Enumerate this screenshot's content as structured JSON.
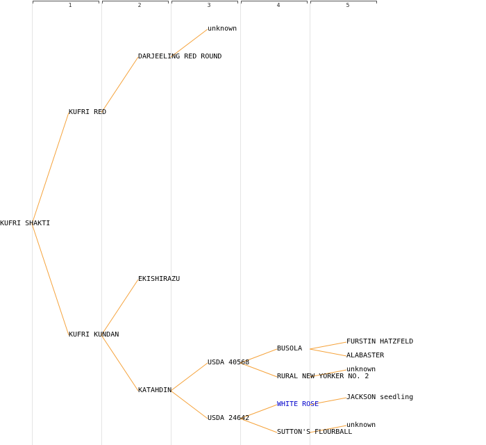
{
  "generations": [
    "1",
    "2",
    "3",
    "4",
    "5"
  ],
  "colors": {
    "connector": "#f5a23a",
    "link_node": "#0000cc",
    "text": "#000000"
  },
  "nodes": {
    "root": "KUFRI SHAKTI",
    "kufri_red": "KUFRI RED",
    "kufri_kundan": "KUFRI KUNDAN",
    "darjeeling_red_round": "DARJEELING RED ROUND",
    "unknown_top": "unknown",
    "ekishirazu": "EKISHIRAZU",
    "katahdin": "KATAHDIN",
    "usda_40568": "USDA 40568",
    "usda_24642": "USDA 24642",
    "busola": "BUSOLA",
    "rural_new_yorker": "RURAL NEW YORKER NO. 2",
    "white_rose": "WHITE ROSE",
    "suttons_flourball": "SUTTON'S FLOURBALL",
    "furstin_hatzfeld": "FURSTIN HATZFELD",
    "alabaster": "ALABASTER",
    "unknown_rny": "unknown",
    "jackson_seedling": "JACKSON seedling",
    "unknown_sutton": "unknown"
  }
}
